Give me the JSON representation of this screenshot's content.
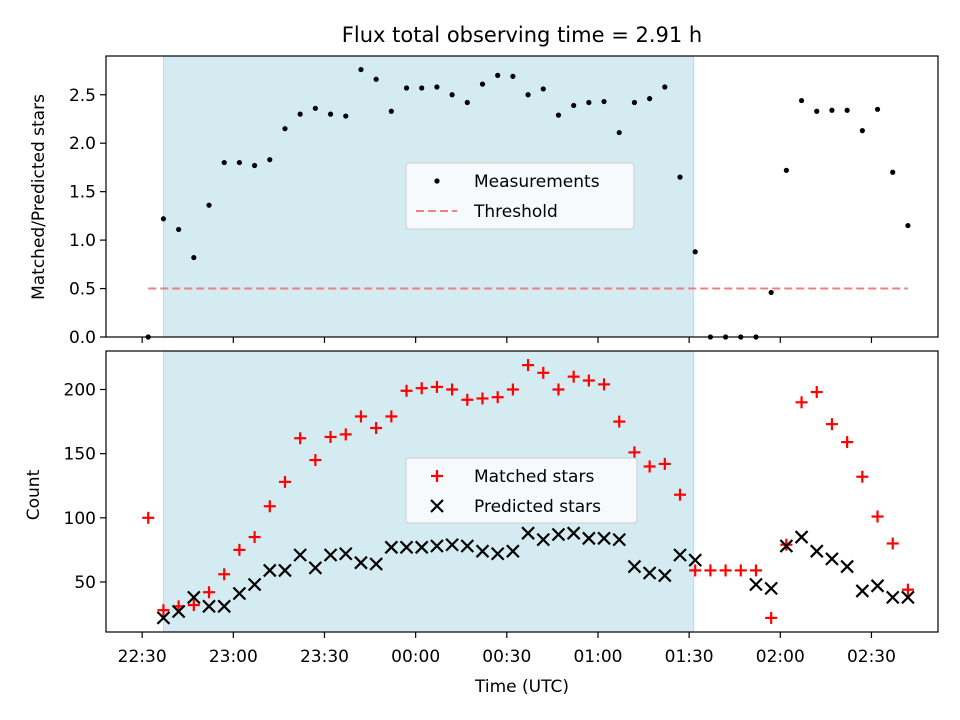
{
  "chart_data": {
    "type": "scatter",
    "title": "Flux total observing time = 2.91 h",
    "xlabel": "Time (UTC)",
    "x_tick_labels": [
      "22:30",
      "23:00",
      "23:30",
      "00:00",
      "00:30",
      "01:00",
      "01:30",
      "02:00",
      "02:30"
    ],
    "x_tick_minutes": [
      0,
      30,
      60,
      90,
      120,
      150,
      180,
      210,
      240
    ],
    "xlim_minutes": [
      -11.9,
      261.9
    ],
    "shaded_span_minutes": [
      7,
      181.5
    ],
    "colors": {
      "shade": "#d4ebf1",
      "measurement": "#000000",
      "threshold": "#f08080",
      "matched": "#ff0000",
      "predicted": "#000000"
    },
    "top_panel": {
      "ylabel": "Matched/Predicted stars",
      "ylim": [
        0,
        2.9
      ],
      "y_tick_labels": [
        "0.0",
        "0.5",
        "1.0",
        "1.5",
        "2.0",
        "2.5"
      ],
      "y_ticks": [
        0,
        0.5,
        1.0,
        1.5,
        2.0,
        2.5
      ],
      "threshold": {
        "name": "Threshold",
        "value": 0.5,
        "x_range_minutes": [
          2,
          252
        ]
      },
      "measurements": {
        "name": "Measurements",
        "x": [
          2,
          7,
          12,
          17,
          22,
          27,
          32,
          37,
          42,
          47,
          52,
          57,
          62,
          67,
          72,
          77,
          82,
          87,
          92,
          97,
          102,
          107,
          112,
          117,
          122,
          127,
          132,
          137,
          142,
          147,
          152,
          157,
          162,
          167,
          172,
          177,
          182,
          187,
          192,
          197,
          202,
          207,
          212,
          217,
          222,
          227,
          232,
          237,
          242,
          247
        ],
        "y": [
          0.0,
          1.22,
          1.11,
          0.82,
          1.36,
          1.8,
          1.8,
          1.77,
          1.83,
          2.15,
          2.3,
          2.36,
          2.3,
          2.28,
          2.76,
          2.66,
          2.33,
          2.57,
          2.57,
          2.58,
          2.5,
          2.42,
          2.61,
          2.7,
          2.69,
          2.5,
          2.56,
          2.29,
          2.39,
          2.42,
          2.43,
          2.11,
          2.42,
          2.46,
          2.58,
          1.65,
          0.88,
          0.0,
          0.0,
          0.0,
          0.0,
          0.46,
          1.72,
          2.44,
          2.33,
          2.34,
          2.34,
          2.13,
          2.35,
          1.7
        ]
      },
      "extra_point": {
        "x": 252,
        "y": 1.15
      },
      "legend": {
        "position": "center",
        "entries": [
          "Measurements",
          "Threshold"
        ]
      }
    },
    "bottom_panel": {
      "ylabel": "Count",
      "ylim": [
        11,
        230
      ],
      "y_tick_labels": [
        "50",
        "100",
        "150",
        "200"
      ],
      "y_ticks": [
        50,
        100,
        150,
        200
      ],
      "matched": {
        "name": "Matched stars",
        "x": [
          2,
          7,
          12,
          17,
          22,
          27,
          32,
          37,
          42,
          47,
          52,
          57,
          62,
          67,
          72,
          77,
          82,
          87,
          92,
          97,
          102,
          107,
          112,
          117,
          122,
          127,
          132,
          137,
          142,
          147,
          152,
          157,
          162,
          167,
          172,
          177,
          182,
          187,
          192,
          197,
          202,
          207,
          212,
          217,
          222,
          227,
          232,
          237,
          242,
          247,
          252
        ],
        "y": [
          100,
          28,
          31,
          32,
          42,
          56,
          75,
          85,
          109,
          128,
          162,
          145,
          163,
          165,
          179,
          170,
          179,
          199,
          201,
          202,
          200,
          192,
          193,
          194,
          200,
          219,
          213,
          200,
          210,
          207,
          204,
          175,
          151,
          140,
          142,
          118,
          59,
          59,
          59,
          59,
          59,
          22,
          79,
          190,
          198,
          173,
          159,
          132,
          101,
          80,
          44
        ]
      },
      "predicted": {
        "name": "Predicted stars",
        "x": [
          7,
          12,
          17,
          22,
          27,
          32,
          37,
          42,
          47,
          52,
          57,
          62,
          67,
          72,
          77,
          82,
          87,
          92,
          97,
          102,
          107,
          112,
          117,
          122,
          127,
          132,
          137,
          142,
          147,
          152,
          157,
          162,
          167,
          172,
          177,
          182,
          202,
          207,
          212,
          217,
          222,
          227,
          232,
          237,
          242,
          247,
          252
        ],
        "y": [
          22,
          27,
          38,
          31,
          31,
          41,
          48,
          59,
          59,
          71,
          61,
          71,
          72,
          65,
          64,
          77,
          77,
          77,
          78,
          79,
          78,
          74,
          72,
          74,
          88,
          83,
          87,
          88,
          84,
          84,
          83,
          62,
          57,
          55,
          71,
          67,
          48,
          45,
          78,
          85,
          74,
          68,
          62,
          43,
          47,
          38,
          38
        ]
      },
      "legend": {
        "position": "center",
        "entries": [
          "Matched stars",
          "Predicted stars"
        ]
      }
    }
  }
}
